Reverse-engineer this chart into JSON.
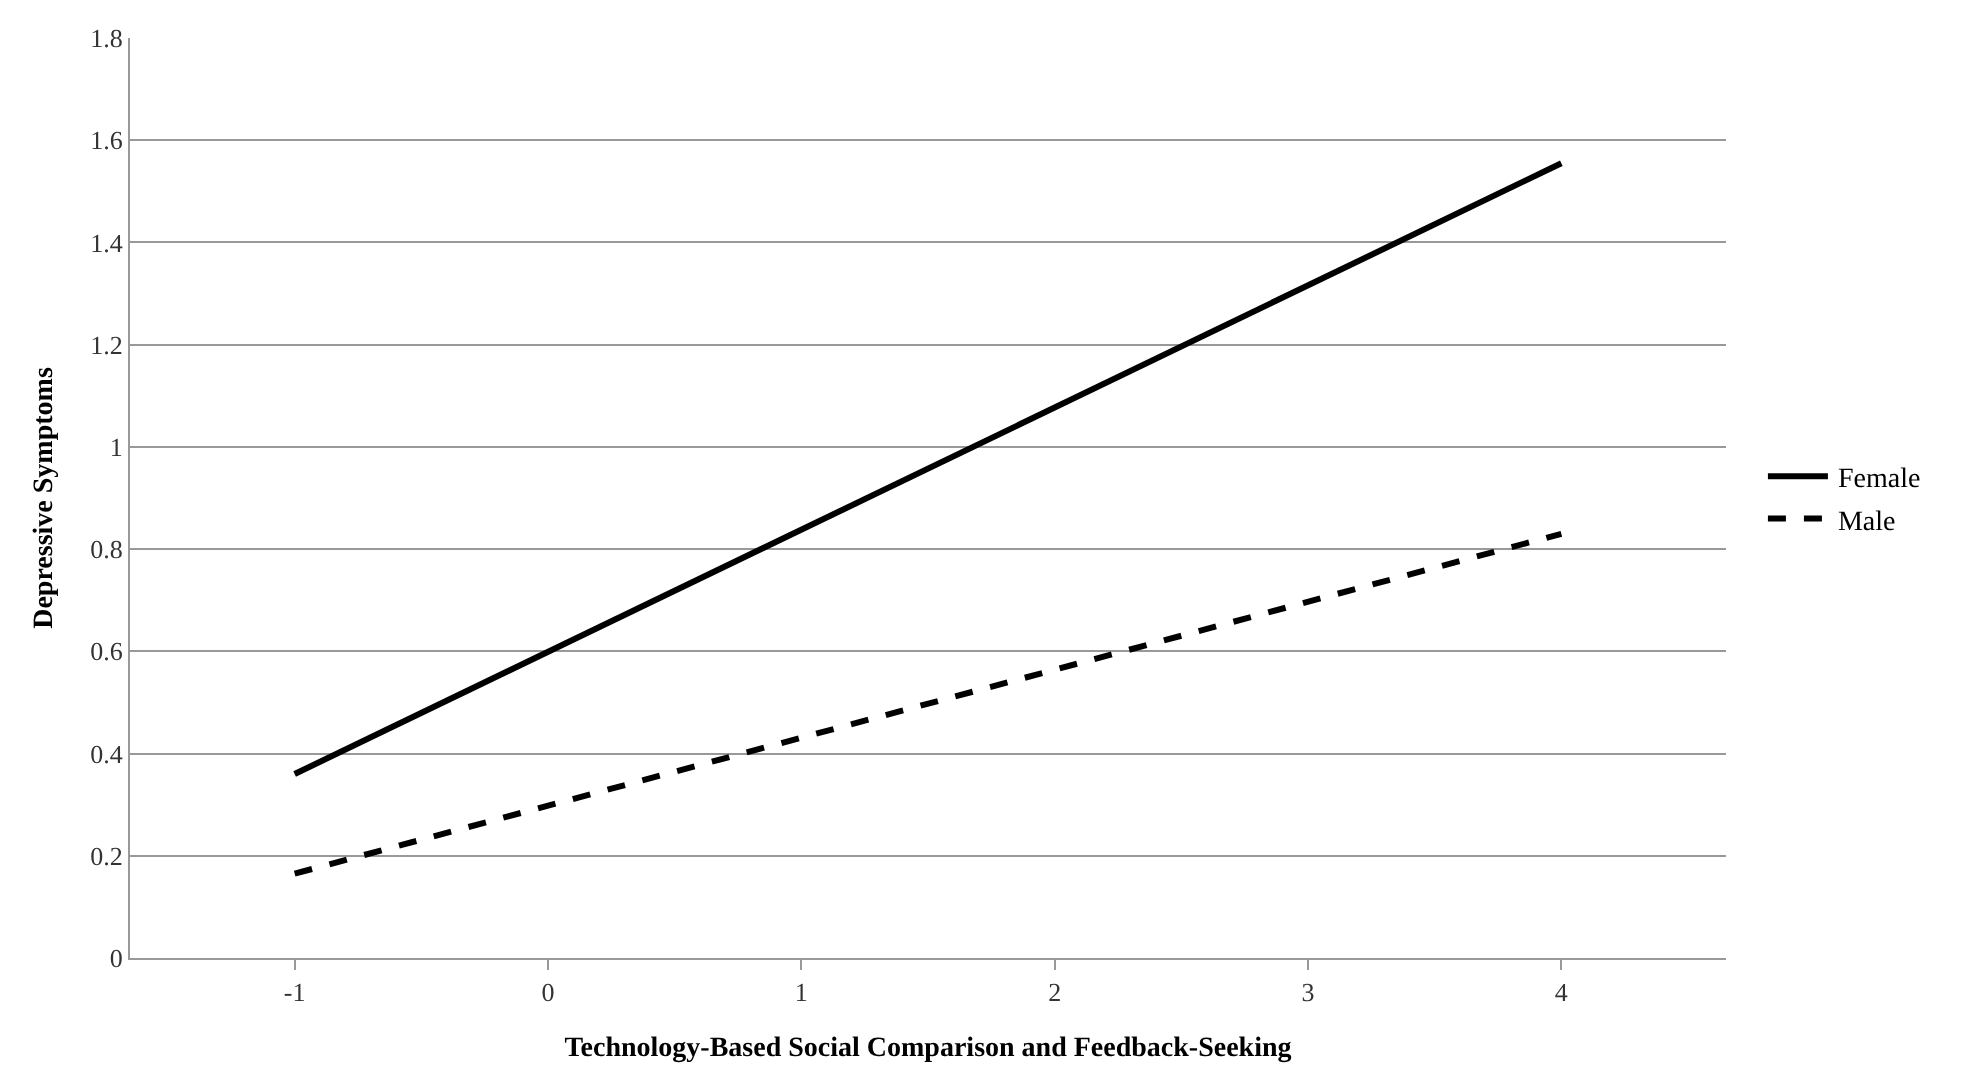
{
  "chart_data": {
    "type": "line",
    "xlabel": "Technology-Based Social Comparison and Feedback-Seeking",
    "ylabel": "Depressive Symptoms",
    "x": [
      -1,
      4
    ],
    "series": [
      {
        "name": "Female",
        "color": "#000000",
        "values": [
          0.36,
          1.555
        ],
        "line_style": "solid"
      },
      {
        "name": "Male",
        "color": "#000000",
        "values": [
          0.165,
          0.83
        ],
        "line_style": "dashed"
      }
    ],
    "xlim": [
      -1.65,
      4.65
    ],
    "xticks": [
      -1,
      0,
      1,
      2,
      3,
      4
    ],
    "ylim": [
      0,
      1.8
    ],
    "yticks": [
      0,
      {
        "value": 0.2,
        "label": "0.2"
      },
      {
        "value": 0.4,
        "label": "0.4"
      },
      {
        "value": 0.6,
        "label": "0.6"
      },
      {
        "value": 0.8,
        "label": "0.8"
      },
      1,
      {
        "value": 1.2,
        "label": "1.2"
      },
      {
        "value": 1.4,
        "label": "1.4"
      },
      {
        "value": 1.6,
        "label": "1.6"
      },
      {
        "value": 1.8,
        "label": "1.8"
      }
    ],
    "grid": "y",
    "legend": "right",
    "marker": "none"
  }
}
